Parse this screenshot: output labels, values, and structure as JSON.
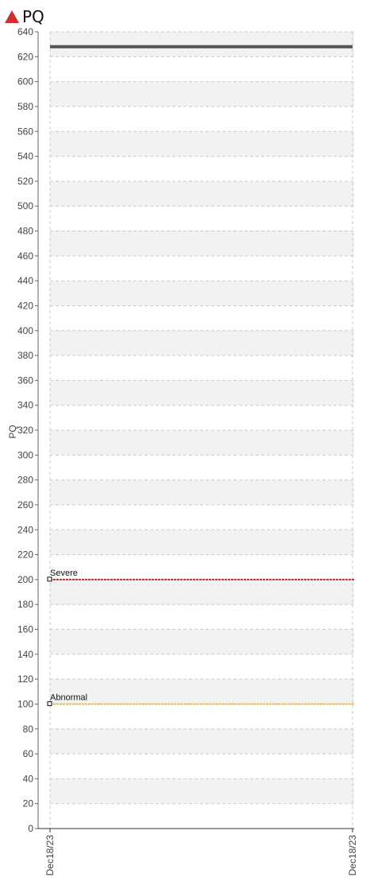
{
  "header": {
    "title": "PQ",
    "icon": "warning-triangle-icon",
    "icon_color": "#d32f2f"
  },
  "chart_data": {
    "type": "line",
    "title": "PQ",
    "ylabel": "PQ",
    "xlabel": "",
    "ylim": [
      0,
      640
    ],
    "ytick_step": 20,
    "grid": true,
    "x_ticks": [
      "Dec18/23",
      "Dec18/23"
    ],
    "series": [
      {
        "values": [
          628,
          628
        ],
        "color": "#555555"
      }
    ],
    "thresholds": [
      {
        "label": "Severe",
        "value": 200,
        "color": "#e02020"
      },
      {
        "label": "Abnormal",
        "value": 100,
        "color": "#f5c400"
      }
    ]
  }
}
